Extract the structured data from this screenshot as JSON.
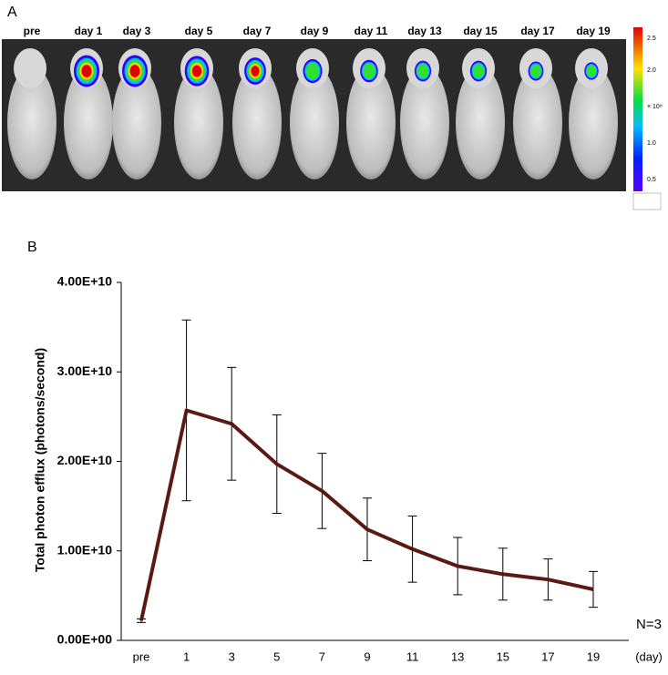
{
  "panel_a": {
    "label": "A",
    "timepoints": [
      "pre",
      "day 1",
      "day 3",
      "day 5",
      "day 7",
      "day 9",
      "day 11",
      "day 13",
      "day 15",
      "day 17",
      "day 19"
    ],
    "colorbar_labels": [
      "2.5",
      "2.0",
      "× 10⁸",
      "1.0",
      "0.5"
    ]
  },
  "chart_data": {
    "type": "line",
    "panel_label": "B",
    "y_label": "Total photon efflux (photons/second)",
    "x_unit": "(day)",
    "annotation": "N=3",
    "categories": [
      "pre",
      "1",
      "3",
      "5",
      "7",
      "9",
      "11",
      "13",
      "15",
      "17",
      "19"
    ],
    "values": [
      2200000000,
      25700000000,
      24200000000,
      19700000000,
      16700000000,
      12400000000,
      10200000000,
      8300000000,
      7400000000,
      6800000000,
      5700000000
    ],
    "errors": [
      200000000,
      10100000000,
      6300000000,
      5500000000,
      4200000000,
      3500000000,
      3700000000,
      3200000000,
      2900000000,
      2300000000,
      2000000000
    ],
    "color": "#5a1a14",
    "ylim": [
      0,
      40000000000
    ],
    "yticks": [
      {
        "value": 0,
        "label": "0.00E+00"
      },
      {
        "value": 10000000000,
        "label": "1.00E+10"
      },
      {
        "value": 20000000000,
        "label": "2.00E+10"
      },
      {
        "value": 30000000000,
        "label": "3.00E+10"
      },
      {
        "value": 40000000000,
        "label": "4.00E+10"
      }
    ]
  }
}
